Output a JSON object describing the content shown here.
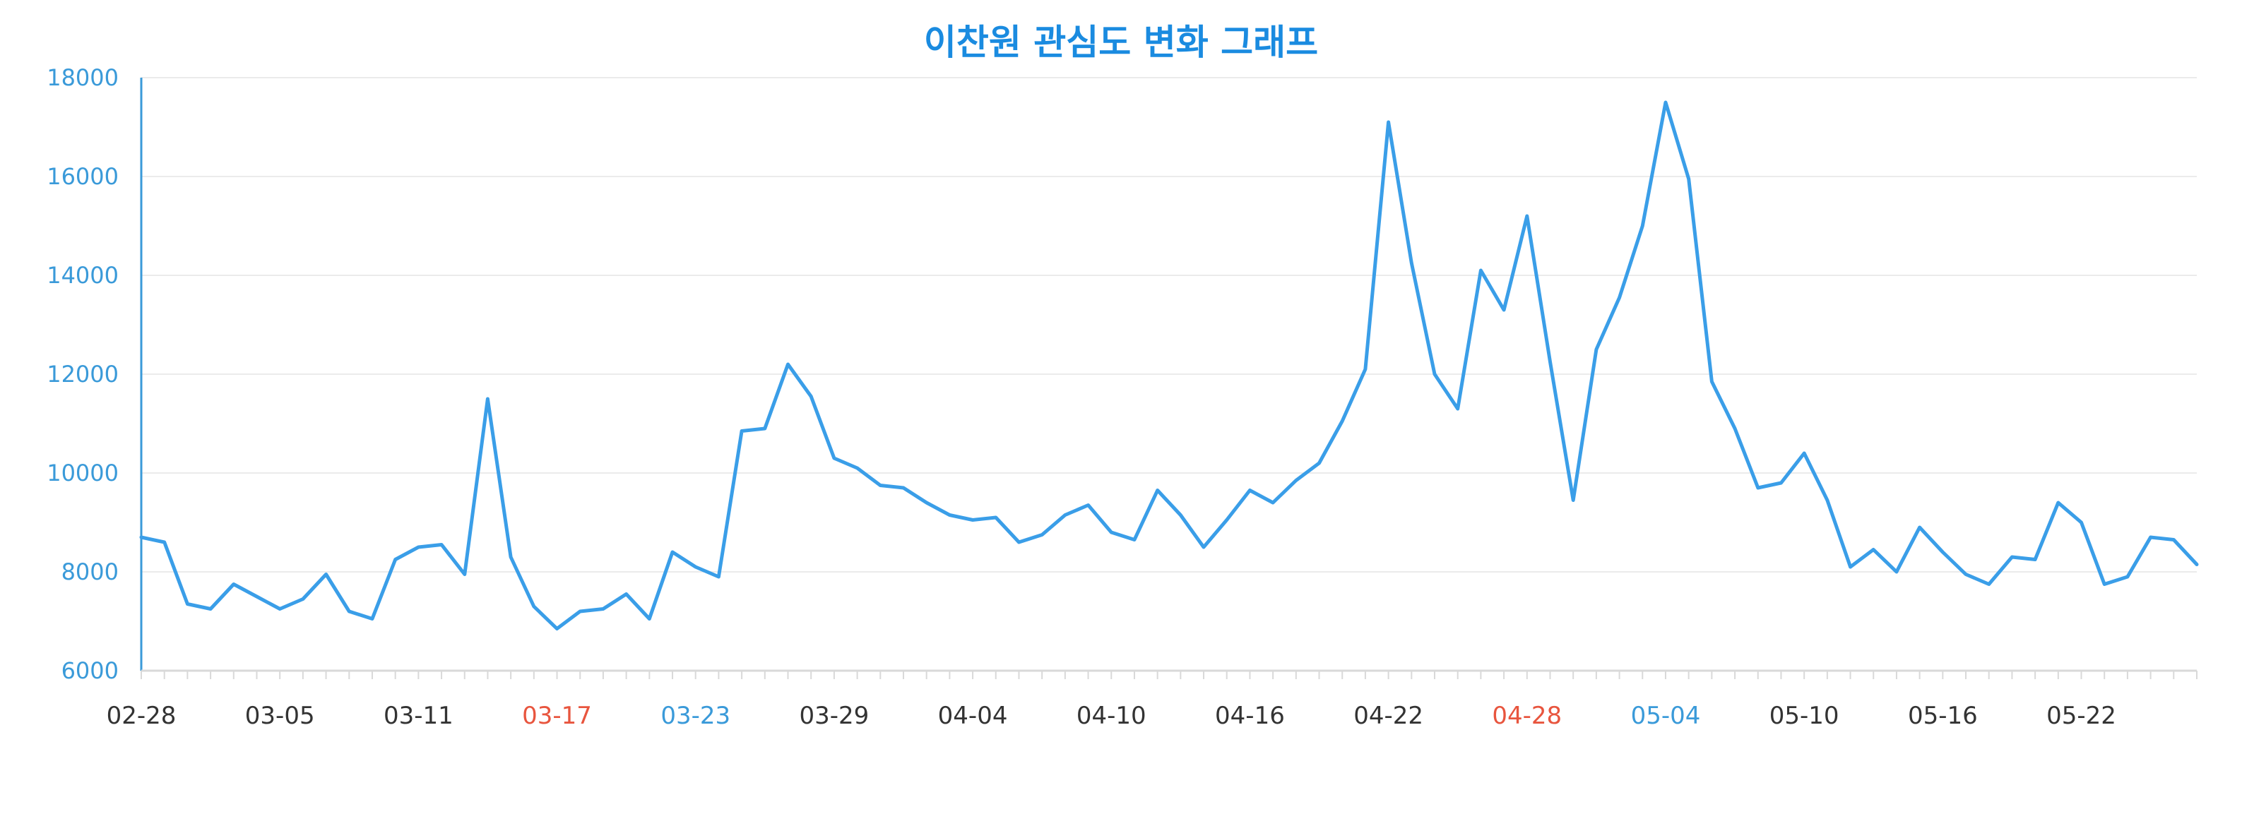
{
  "chart_data": {
    "type": "line",
    "title": "이찬원 관심도 변화 그래프",
    "xlabel": "",
    "ylabel": "",
    "ylim": [
      6000,
      18000
    ],
    "y_ticks": [
      6000,
      8000,
      10000,
      12000,
      14000,
      16000,
      18000
    ],
    "y_tick_labels": [
      "6000",
      "8000",
      "10000",
      "12000",
      "14000",
      "16000",
      "18000"
    ],
    "grid": true,
    "x_tick_labels": [
      "02-28",
      "03-05",
      "03-11",
      "03-17",
      "03-23",
      "03-29",
      "04-04",
      "04-10",
      "04-16",
      "04-22",
      "04-28",
      "05-04",
      "05-10",
      "05-16",
      "05-22"
    ],
    "x_tick_label_colors": [
      "#333333",
      "#333333",
      "#333333",
      "#e8553e",
      "#3a9ad9",
      "#333333",
      "#333333",
      "#333333",
      "#333333",
      "#333333",
      "#e8553e",
      "#3a9ad9",
      "#333333",
      "#333333",
      "#333333"
    ],
    "x_tick_every": 6,
    "series": [
      {
        "color": "#3a9ee8",
        "values": [
          8700,
          8600,
          7350,
          7250,
          7750,
          7500,
          7250,
          7450,
          7950,
          7200,
          7050,
          8250,
          8500,
          8550,
          7950,
          11500,
          8300,
          7300,
          6850,
          7200,
          7250,
          7550,
          7050,
          8400,
          8100,
          7900,
          10850,
          10900,
          12200,
          11550,
          10300,
          10100,
          9750,
          9700,
          9400,
          9150,
          9050,
          9100,
          8600,
          8750,
          9150,
          9350,
          8800,
          8650,
          9650,
          9150,
          8500,
          9050,
          9650,
          9400,
          9850,
          10200,
          11050,
          12100,
          17100,
          14250,
          12000,
          11300,
          14100,
          13300,
          15200,
          12250,
          9450,
          12500,
          13550,
          15000,
          17500,
          15950,
          11850,
          10900,
          9700,
          9800,
          10400,
          9450,
          8100,
          8450,
          8000,
          8900,
          8400,
          7950,
          7750,
          8300,
          8250,
          9400,
          9000,
          7750,
          7900,
          8700,
          8650,
          8150
        ]
      }
    ]
  },
  "colors": {
    "title": "#1a8be0",
    "y_axis": "#3a9ad9",
    "grid": "#ebebeb",
    "line": "#3a9ee8",
    "x_axis": "#d9d9d9"
  }
}
